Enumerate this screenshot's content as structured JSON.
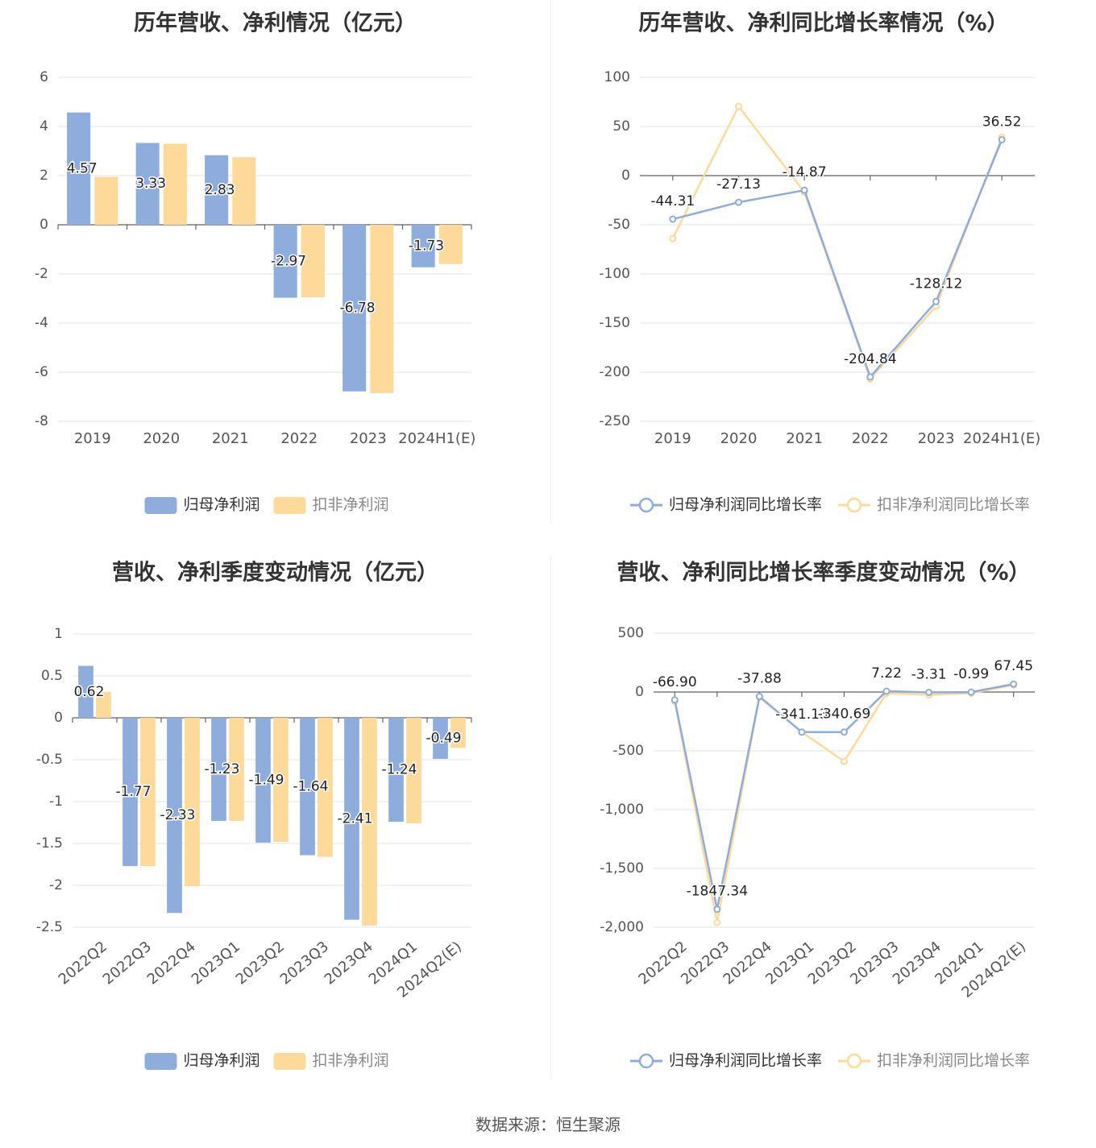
{
  "colors": {
    "blue": "#8eacdc",
    "yellow": "#fdd99a",
    "grid": "#e6e8f2",
    "axis": "#666666",
    "tick_text": "#555555",
    "label_text": "#222222",
    "title_text": "#333333"
  },
  "footer": {
    "source_label": "数据来源：",
    "source_value": "恒生聚源"
  },
  "chart_data": [
    {
      "type": "bar",
      "title": "历年营收、净利情况（亿元）",
      "categories": [
        "2019",
        "2020",
        "2021",
        "2022",
        "2023",
        "2024H1(E)"
      ],
      "ylim": [
        -8,
        6
      ],
      "yticks": [
        6,
        4,
        2,
        0,
        -2,
        -4,
        -6,
        -8
      ],
      "ytick_labels": [
        "6",
        "4",
        "2",
        "0",
        "-2",
        "-4",
        "-6",
        "-8"
      ],
      "grid": true,
      "legend_position": "bottom",
      "series": [
        {
          "name": "归母净利润",
          "color": "#8eacdc",
          "values": [
            4.57,
            3.33,
            2.83,
            -2.97,
            -6.78,
            -1.73
          ],
          "labels": [
            "4.57",
            "3.33",
            "2.83",
            "-2.97",
            "-6.78",
            "-1.73"
          ]
        },
        {
          "name": "扣非净利润",
          "color": "#fdd99a",
          "values": [
            1.95,
            3.3,
            2.75,
            -2.95,
            -6.85,
            -1.6
          ]
        }
      ]
    },
    {
      "type": "line",
      "title": "历年营收、净利同比增长率情况（%）",
      "categories": [
        "2019",
        "2020",
        "2021",
        "2022",
        "2023",
        "2024H1(E)"
      ],
      "ylim": [
        -250,
        100
      ],
      "yticks": [
        100,
        50,
        0,
        -50,
        -100,
        -150,
        -200,
        -250
      ],
      "ytick_labels": [
        "100",
        "50",
        "0",
        "-50",
        "-100",
        "-150",
        "-200",
        "-250"
      ],
      "grid": true,
      "legend_position": "bottom",
      "series": [
        {
          "name": "归母净利润同比增长率",
          "color": "#8eacdc",
          "values": [
            -44.31,
            -27.13,
            -14.87,
            -204.84,
            -128.12,
            36.52
          ],
          "labels": [
            "-44.31",
            "-27.13",
            "-14.87",
            "-204.84",
            "-128.12",
            "36.52"
          ]
        },
        {
          "name": "扣非净利润同比增长率",
          "color": "#fdd99a",
          "values": [
            -64,
            70.5,
            -17,
            -207,
            -133,
            39
          ]
        }
      ]
    },
    {
      "type": "bar",
      "title": "营收、净利季度变动情况（亿元）",
      "categories": [
        "2022Q2",
        "2022Q3",
        "2022Q4",
        "2023Q1",
        "2023Q2",
        "2023Q3",
        "2023Q4",
        "2024Q1",
        "2024Q2(E)"
      ],
      "ylim": [
        -2.5,
        1
      ],
      "yticks": [
        1,
        0.5,
        0,
        -0.5,
        -1,
        -1.5,
        -2,
        -2.5
      ],
      "ytick_labels": [
        "1",
        "0.5",
        "0",
        "-0.5",
        "-1",
        "-1.5",
        "-2",
        "-2.5"
      ],
      "grid": true,
      "legend_position": "bottom",
      "series": [
        {
          "name": "归母净利润",
          "color": "#8eacdc",
          "values": [
            0.62,
            -1.77,
            -2.33,
            -1.23,
            -1.49,
            -1.64,
            -2.41,
            -1.24,
            -0.49
          ],
          "labels": [
            "0.62",
            "-1.77",
            "-2.33",
            "-1.23",
            "-1.49",
            "-1.64",
            "-2.41",
            "-1.24",
            "-0.49"
          ]
        },
        {
          "name": "扣非净利润",
          "color": "#fdd99a",
          "values": [
            0.31,
            -1.77,
            -2.01,
            -1.23,
            -1.48,
            -1.66,
            -2.48,
            -1.26,
            -0.36
          ]
        }
      ]
    },
    {
      "type": "line",
      "title": "营收、净利同比增长率季度变动情况（%）",
      "categories": [
        "2022Q2",
        "2022Q3",
        "2022Q4",
        "2023Q1",
        "2023Q2",
        "2023Q3",
        "2023Q4",
        "2024Q1",
        "2024Q2(E)"
      ],
      "ylim": [
        -2000,
        500
      ],
      "yticks": [
        500,
        0,
        -500,
        -1000,
        -1500,
        -2000
      ],
      "ytick_labels": [
        "500",
        "0",
        "-500",
        "-1,000",
        "-1,500",
        "-2,000"
      ],
      "grid": true,
      "legend_position": "bottom",
      "series": [
        {
          "name": "归母净利润同比增长率",
          "color": "#8eacdc",
          "values": [
            -66.9,
            -1847.34,
            -37.88,
            -341.13,
            -340.69,
            7.22,
            -3.31,
            -0.99,
            67.45
          ],
          "labels": [
            "-66.90",
            "-1847.34",
            "-37.88",
            "-341.13",
            "-340.69",
            "7.22",
            "-3.31",
            "-0.99",
            "67.45"
          ]
        },
        {
          "name": "扣非净利润同比增长率",
          "color": "#fdd99a",
          "values": [
            -80,
            -1960,
            -45,
            -340,
            -590,
            -10,
            -25,
            -10,
            60
          ]
        }
      ]
    }
  ]
}
